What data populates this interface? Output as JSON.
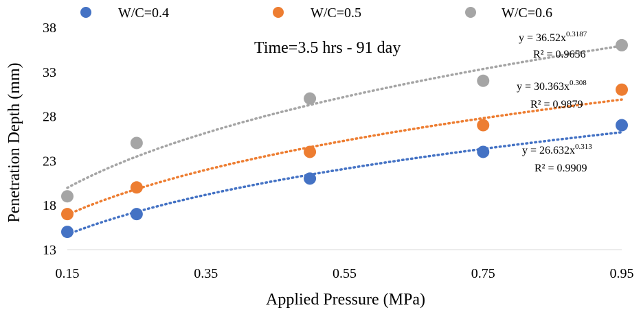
{
  "chart_data": {
    "type": "scatter",
    "title": "Time=3.5 hrs - 91 day",
    "xlabel": "Applied Pressure (MPa)",
    "ylabel": "Penetration Depth (mm)",
    "xlim": [
      0.15,
      0.95
    ],
    "ylim": [
      13,
      38
    ],
    "x_ticks": [
      "0.15",
      "0.35",
      "0.55",
      "0.75",
      "0.95"
    ],
    "y_ticks": [
      "13",
      "18",
      "23",
      "28",
      "33",
      "38"
    ],
    "grid": false,
    "legend_position": "top",
    "x": [
      0.15,
      0.25,
      0.5,
      0.75,
      0.95
    ],
    "series": [
      {
        "name": "W/C=0.4",
        "color": "#4472C4",
        "values": [
          15,
          17,
          21,
          24,
          27
        ],
        "trendline": {
          "type": "power",
          "a": 26.632,
          "b": 0.313,
          "eq_prefix": "y = 26.632x",
          "eq_exp": "0.313",
          "r2_label": "R² = 0.9909"
        }
      },
      {
        "name": "W/C=0.5",
        "color": "#ED7D31",
        "values": [
          17,
          20,
          24,
          27,
          31
        ],
        "trendline": {
          "type": "power",
          "a": 30.363,
          "b": 0.308,
          "eq_prefix": "y = 30.363x",
          "eq_exp": "0.308",
          "r2_label": "R² = 0.9879"
        }
      },
      {
        "name": "W/C=0.6",
        "color": "#A5A5A5",
        "values": [
          19,
          25,
          30,
          32,
          36
        ],
        "trendline": {
          "type": "power",
          "a": 36.52,
          "b": 0.3187,
          "eq_prefix": "y = 36.52x",
          "eq_exp": "0.3187",
          "r2_label": "R² = 0.9656"
        }
      }
    ]
  }
}
